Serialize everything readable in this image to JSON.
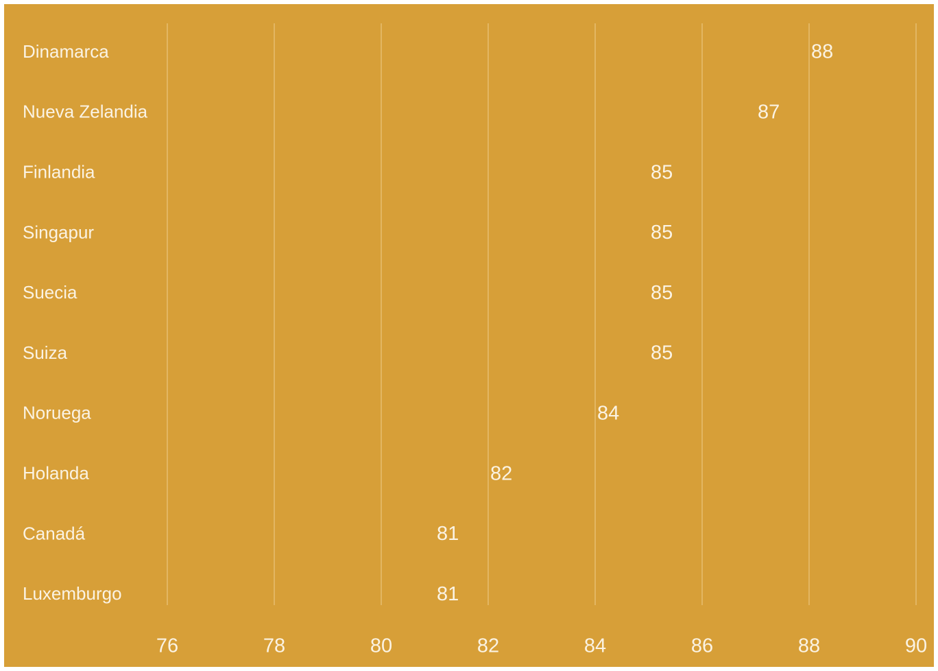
{
  "chart_data": {
    "type": "bar",
    "categories": [
      "Dinamarca",
      "Nueva Zelandia",
      "Finlandia",
      "Singapur",
      "Suecia",
      "Suiza",
      "Noruega",
      "Holanda",
      "Canadá",
      "Luxemburgo"
    ],
    "values": [
      88,
      87,
      85,
      85,
      85,
      85,
      84,
      82,
      81,
      81
    ],
    "value_labels": [
      "88",
      "87",
      "85",
      "85",
      "85",
      "85",
      "84",
      "82",
      "81",
      "81"
    ],
    "x_ticks": [
      "76",
      "78",
      "80",
      "82",
      "84",
      "86",
      "88",
      "90"
    ],
    "tick_values": [
      76,
      78,
      80,
      82,
      84,
      86,
      88,
      90
    ],
    "xlim": [
      76,
      90
    ],
    "orientation": "horizontal",
    "grid": true,
    "title": "",
    "xlabel": "",
    "ylabel": ""
  },
  "colors": {
    "background": "#d79f38",
    "text": "#fbf3e3",
    "grid": "#e9c27a"
  }
}
